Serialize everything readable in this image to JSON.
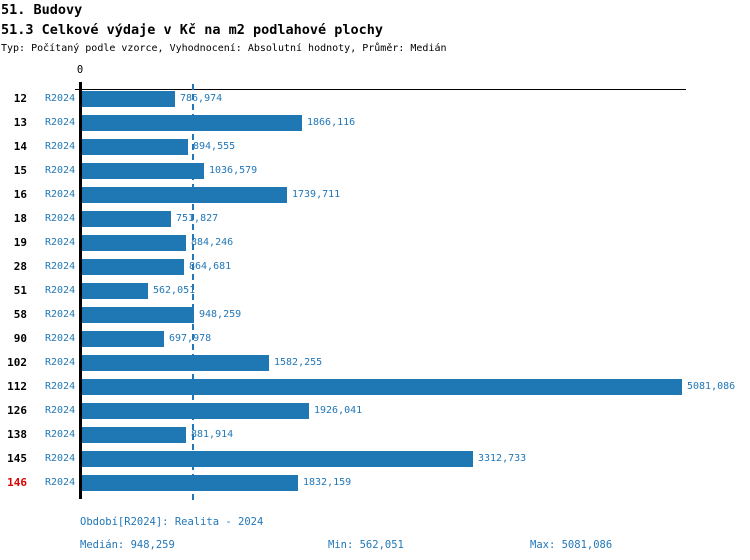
{
  "header": {
    "title_line1": "51. Budovy",
    "title_line2": "51.3 Celkové výdaje v Kč na m2 podlahové plochy",
    "subtitle": "Typ: Počítaný podle vzorce, Vyhodnocení: Absolutní hodnoty, Průměr: Medián"
  },
  "axis": {
    "zero_label": "0"
  },
  "colors": {
    "bar_blue": "#1f77b4",
    "text_blue": "#2277b8",
    "highlight_red": "#dd0000",
    "axis_black": "#000000"
  },
  "footer": {
    "period_line": "Období[R2024]: Realita - 2024",
    "median_label": "Medián: 948,259",
    "min_label": "Min: 562,051",
    "max_label": "Max: 5081,086"
  },
  "chart_data": {
    "type": "bar",
    "orientation": "horizontal",
    "title": "51.3 Celkové výdaje v Kč na m2 podlahové plochy",
    "section_title": "51. Budovy",
    "series_label": "R2024",
    "categories": [
      "12",
      "13",
      "14",
      "15",
      "16",
      "18",
      "19",
      "28",
      "51",
      "58",
      "90",
      "102",
      "112",
      "126",
      "138",
      "145",
      "146"
    ],
    "values": [
      786.974,
      1866.116,
      894.555,
      1036.579,
      1739.711,
      751.827,
      884.246,
      864.681,
      562.051,
      948.259,
      697.978,
      1582.255,
      5081.086,
      1926.041,
      881.914,
      3312.733,
      1832.159
    ],
    "value_labels": [
      "786,974",
      "1866,116",
      "894,555",
      "1036,579",
      "1739,711",
      "751,827",
      "884,246",
      "864,681",
      "562,051",
      "948,259",
      "697,978",
      "1582,255",
      "5081,086",
      "1926,041",
      "881,914",
      "3312,733",
      "1832,159"
    ],
    "highlighted_category": "146",
    "median": 948.259,
    "min": 562.051,
    "max": 5081.086,
    "xlim": [
      0,
      5081.086
    ],
    "x_tick_labels": [
      "0"
    ],
    "median_reference_line": true,
    "grid": false,
    "legend_position": "none"
  }
}
